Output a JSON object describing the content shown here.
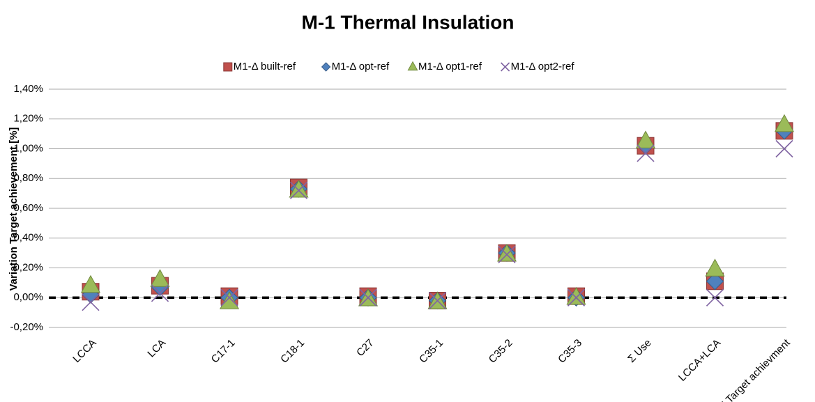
{
  "chart_data": {
    "type": "scatter",
    "title": "M-1 Thermal Insulation",
    "y_label": "Variation Target achievement [%]",
    "categories": [
      "LCCA",
      "LCA",
      "C17-1",
      "C18-1",
      "C27",
      "C35-1",
      "C35-2",
      "C35-3",
      "Σ Use",
      "LCCA+LCA",
      "Σ Target achievment"
    ],
    "series": [
      {
        "name": "M1-Δ built-ref",
        "color": "#c0504d",
        "marker": "square",
        "values": [
          0.04,
          0.08,
          0.01,
          0.74,
          0.01,
          -0.02,
          0.3,
          0.01,
          1.02,
          0.11,
          1.12
        ]
      },
      {
        "name": "M1-Δ opt-ref",
        "color": "#4f81bd",
        "marker": "diamond",
        "values": [
          0.02,
          0.07,
          0.0,
          0.73,
          0.0,
          -0.02,
          0.3,
          0.0,
          1.02,
          0.11,
          1.12
        ]
      },
      {
        "name": "M1-Δ opt1-ref",
        "color": "#9bbb59",
        "marker": "triangle",
        "values": [
          0.08,
          0.12,
          -0.03,
          0.72,
          -0.01,
          -0.03,
          0.29,
          0.0,
          1.05,
          0.19,
          1.16
        ]
      },
      {
        "name": "M1-Δ opt2-ref",
        "color": "#8064a2",
        "marker": "x",
        "values": [
          -0.03,
          0.03,
          0.0,
          0.72,
          0.0,
          -0.02,
          0.29,
          0.0,
          0.97,
          0.0,
          1.0
        ]
      }
    ],
    "ylim": [
      -0.2,
      1.4
    ],
    "yticks": [
      {
        "value": -0.2,
        "label": "-0,20%"
      },
      {
        "value": 0,
        "label": "0,00%"
      },
      {
        "value": 0.2,
        "label": "0,20%"
      },
      {
        "value": 0.4,
        "label": "0,40%"
      },
      {
        "value": 0.6,
        "label": "0,60%"
      },
      {
        "value": 0.8,
        "label": "0,80%"
      },
      {
        "value": 1.0,
        "label": "1,00%"
      },
      {
        "value": 1.2,
        "label": "1,20%"
      },
      {
        "value": 1.4,
        "label": "1,40%"
      }
    ],
    "grid": true,
    "legend": "top"
  }
}
